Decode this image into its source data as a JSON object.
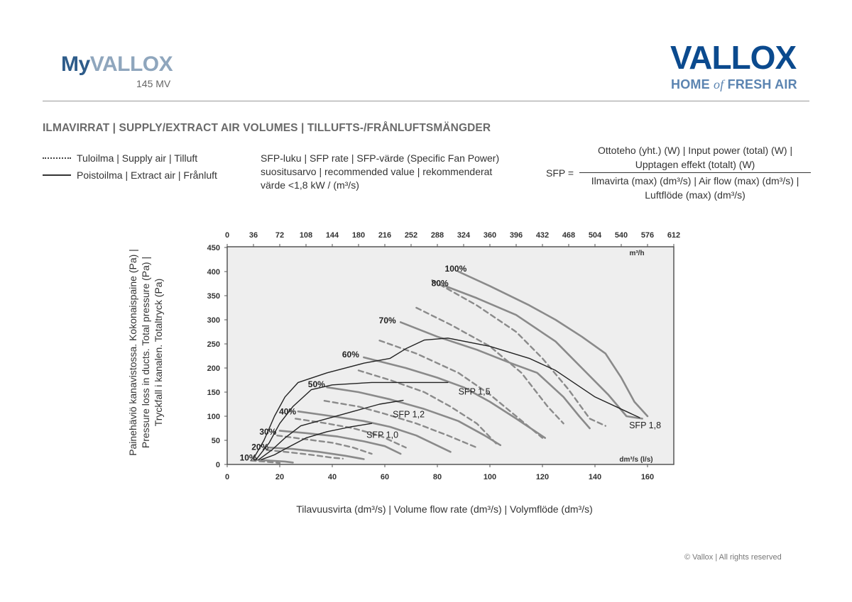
{
  "header": {
    "brand_my": "My",
    "brand_vallox": "VALLOX",
    "model": "145 MV",
    "logo_main": "VALLOX",
    "logo_sub_a": "HOME",
    "logo_sub_of": "of",
    "logo_sub_b": "FRESH AIR"
  },
  "section_title": "ILMAVIRRAT | SUPPLY/EXTRACT AIR VOLUMES | TILLUFTS-/FRÅNLUFTSMÄNGDER",
  "legend": {
    "supply": "Tuloilma | Supply air | Tilluft",
    "extract": "Poistoilma | Extract air | Frånluft"
  },
  "sfp_note": {
    "line1": "SFP-luku | SFP rate | SFP-värde (Specific Fan Power)",
    "line2": "suositusarvo | recommended value | rekommenderat",
    "line3": "värde <1,8 kW / (m³/s)"
  },
  "formula": {
    "lhs": "SFP =",
    "num1": "Ottoteho (yht.) (W) | Input power (total) (W) |",
    "num2": "Upptagen effekt (totalt) (W)",
    "den1": "Ilmavirta (max) (dm³/s) | Air flow (max) (dm³/s) |",
    "den2": "Luftflöde (max) (dm³/s)"
  },
  "chart_data": {
    "type": "line",
    "x_bottom": {
      "range": [
        0,
        170
      ],
      "ticks": [
        "0",
        "20",
        "40",
        "60",
        "80",
        "100",
        "120",
        "140",
        "160"
      ],
      "unit": "dm³/s (l/s)"
    },
    "x_top": {
      "ticks": [
        "0",
        "36",
        "72",
        "108",
        "144",
        "180",
        "216",
        "252",
        "288",
        "324",
        "360",
        "396",
        "432",
        "468",
        "504",
        "540",
        "576",
        "612"
      ],
      "unit": "m³/h"
    },
    "y": {
      "range": [
        0,
        450
      ],
      "ticks": [
        "0",
        "50",
        "100",
        "150",
        "200",
        "250",
        "300",
        "350",
        "400",
        "450"
      ]
    },
    "ylabel_lines": [
      "Painehäviö kanavistossa. Kokonaispaine (Pa) |",
      "Pressure loss in ducts. Total pressure (Pa) |",
      "Tryckfall i kanalen. Totaltryck (Pa)"
    ],
    "xlabel": "Tilavuusvirta (dm³/s) | Volume flow rate (dm³/s) | Volymflöde (dm³/s)",
    "speed_labels": [
      {
        "text": "100%",
        "x": 87,
        "y": 400
      },
      {
        "text": "80%",
        "x": 81,
        "y": 370
      },
      {
        "text": "70%",
        "x": 61,
        "y": 293
      },
      {
        "text": "60%",
        "x": 47,
        "y": 222
      },
      {
        "text": "50%",
        "x": 34,
        "y": 160
      },
      {
        "text": "40%",
        "x": 23,
        "y": 104
      },
      {
        "text": "30%",
        "x": 15.5,
        "y": 62
      },
      {
        "text": "20%",
        "x": 12.5,
        "y": 30
      },
      {
        "text": "10%",
        "x": 8,
        "y": 8
      }
    ],
    "sfp_labels": [
      {
        "text": "SFP 1,8",
        "x": 153,
        "y": 75
      },
      {
        "text": "SFP 1,5",
        "x": 88,
        "y": 145
      },
      {
        "text": "SFP 1,2",
        "x": 63,
        "y": 98
      },
      {
        "text": "SFP 1,0",
        "x": 53,
        "y": 55
      }
    ],
    "series": [
      {
        "name": "Extract 100%",
        "style": "solid",
        "points": [
          [
            88,
            400
          ],
          [
            100,
            370
          ],
          [
            115,
            330
          ],
          [
            125,
            300
          ],
          [
            135,
            265
          ],
          [
            144,
            230
          ],
          [
            150,
            180
          ],
          [
            155,
            130
          ],
          [
            160,
            100
          ]
        ]
      },
      {
        "name": "Supply 100%",
        "style": "dashed",
        "points": [
          [
            78,
            382
          ],
          [
            95,
            330
          ],
          [
            110,
            275
          ],
          [
            120,
            220
          ],
          [
            130,
            155
          ],
          [
            138,
            95
          ],
          [
            144,
            80
          ]
        ]
      },
      {
        "name": "Extract 80%",
        "style": "solid",
        "points": [
          [
            82,
            372
          ],
          [
            95,
            345
          ],
          [
            110,
            310
          ],
          [
            125,
            255
          ],
          [
            135,
            200
          ],
          [
            145,
            145
          ],
          [
            152,
            100
          ],
          [
            158,
            95
          ]
        ]
      },
      {
        "name": "Supply 80%",
        "style": "dashed",
        "points": [
          [
            72,
            325
          ],
          [
            85,
            290
          ],
          [
            100,
            245
          ],
          [
            112,
            190
          ],
          [
            122,
            120
          ],
          [
            128,
            85
          ]
        ]
      },
      {
        "name": "Extract 70%",
        "style": "solid",
        "points": [
          [
            66,
            295
          ],
          [
            80,
            265
          ],
          [
            95,
            238
          ],
          [
            108,
            210
          ],
          [
            118,
            190
          ],
          [
            128,
            140
          ],
          [
            134,
            100
          ],
          [
            138,
            75
          ]
        ]
      },
      {
        "name": "Supply 70%",
        "style": "dashed",
        "points": [
          [
            58,
            257
          ],
          [
            72,
            230
          ],
          [
            88,
            190
          ],
          [
            100,
            145
          ],
          [
            110,
            100
          ],
          [
            120,
            55
          ]
        ]
      },
      {
        "name": "Extract 60%",
        "style": "solid",
        "points": [
          [
            52,
            222
          ],
          [
            68,
            200
          ],
          [
            80,
            180
          ],
          [
            90,
            160
          ],
          [
            100,
            130
          ],
          [
            110,
            95
          ],
          [
            121,
            55
          ]
        ]
      },
      {
        "name": "Supply 60%",
        "style": "dashed",
        "points": [
          [
            50,
            195
          ],
          [
            62,
            175
          ],
          [
            75,
            150
          ],
          [
            85,
            120
          ],
          [
            95,
            85
          ],
          [
            103,
            40
          ]
        ]
      },
      {
        "name": "Extract 50%",
        "style": "solid",
        "points": [
          [
            38,
            160
          ],
          [
            50,
            150
          ],
          [
            62,
            135
          ],
          [
            75,
            115
          ],
          [
            88,
            90
          ],
          [
            98,
            60
          ],
          [
            104,
            40
          ]
        ]
      },
      {
        "name": "Supply 50%",
        "style": "dashed",
        "points": [
          [
            37,
            132
          ],
          [
            50,
            120
          ],
          [
            60,
            105
          ],
          [
            72,
            85
          ],
          [
            84,
            60
          ],
          [
            95,
            35
          ]
        ]
      },
      {
        "name": "Extract 40%",
        "style": "solid",
        "points": [
          [
            27,
            110
          ],
          [
            40,
            100
          ],
          [
            52,
            90
          ],
          [
            62,
            78
          ],
          [
            72,
            60
          ],
          [
            85,
            26
          ]
        ]
      },
      {
        "name": "Supply 40%",
        "style": "dashed",
        "points": [
          [
            26,
            95
          ],
          [
            38,
            85
          ],
          [
            48,
            75
          ],
          [
            58,
            60
          ],
          [
            68,
            35
          ]
        ]
      },
      {
        "name": "Extract 30%",
        "style": "solid",
        "points": [
          [
            20,
            70
          ],
          [
            30,
            65
          ],
          [
            42,
            58
          ],
          [
            52,
            48
          ],
          [
            60,
            38
          ],
          [
            66,
            22
          ]
        ]
      },
      {
        "name": "Supply 30%",
        "style": "dashed",
        "points": [
          [
            19,
            60
          ],
          [
            30,
            52
          ],
          [
            40,
            45
          ],
          [
            48,
            35
          ],
          [
            55,
            22
          ]
        ]
      },
      {
        "name": "Extract 20%",
        "style": "solid",
        "points": [
          [
            16,
            35
          ],
          [
            25,
            32
          ],
          [
            35,
            26
          ],
          [
            45,
            18
          ],
          [
            52,
            11
          ]
        ]
      },
      {
        "name": "Supply 20%",
        "style": "dashed",
        "points": [
          [
            15,
            30
          ],
          [
            24,
            25
          ],
          [
            32,
            20
          ],
          [
            40,
            14
          ],
          [
            44,
            12
          ]
        ]
      },
      {
        "name": "Extract 10%",
        "style": "solid",
        "points": [
          [
            10,
            10
          ],
          [
            16,
            8
          ],
          [
            22,
            6
          ],
          [
            25,
            4
          ]
        ]
      },
      {
        "name": "Supply 10%",
        "style": "dashed",
        "points": [
          [
            9,
            8
          ],
          [
            14,
            6
          ],
          [
            20,
            3
          ]
        ]
      },
      {
        "name": "SFP 1,8",
        "style": "sfp",
        "points": [
          [
            10,
            12
          ],
          [
            14,
            50
          ],
          [
            18,
            100
          ],
          [
            22,
            140
          ],
          [
            27,
            170
          ],
          [
            38,
            190
          ],
          [
            52,
            210
          ],
          [
            62,
            220
          ],
          [
            68,
            240
          ],
          [
            75,
            258
          ],
          [
            84,
            262
          ],
          [
            100,
            245
          ],
          [
            115,
            220
          ],
          [
            125,
            195
          ],
          [
            140,
            140
          ],
          [
            157,
            97
          ]
        ]
      },
      {
        "name": "SFP 1,5",
        "style": "sfp",
        "points": [
          [
            11,
            10
          ],
          [
            16,
            45
          ],
          [
            20,
            85
          ],
          [
            25,
            120
          ],
          [
            32,
            155
          ],
          [
            40,
            165
          ],
          [
            55,
            170
          ],
          [
            72,
            170
          ],
          [
            84,
            170
          ]
        ]
      },
      {
        "name": "SFP 1,2",
        "style": "sfp",
        "points": [
          [
            12,
            10
          ],
          [
            17,
            30
          ],
          [
            22,
            55
          ],
          [
            28,
            80
          ],
          [
            38,
            95
          ],
          [
            48,
            110
          ],
          [
            58,
            125
          ],
          [
            67,
            133
          ]
        ]
      },
      {
        "name": "SFP 1,0",
        "style": "sfp",
        "points": [
          [
            13,
            10
          ],
          [
            18,
            20
          ],
          [
            23,
            35
          ],
          [
            30,
            55
          ],
          [
            38,
            68
          ],
          [
            47,
            78
          ],
          [
            55,
            85
          ]
        ]
      }
    ]
  },
  "footer": "© Vallox | All rights reserved"
}
